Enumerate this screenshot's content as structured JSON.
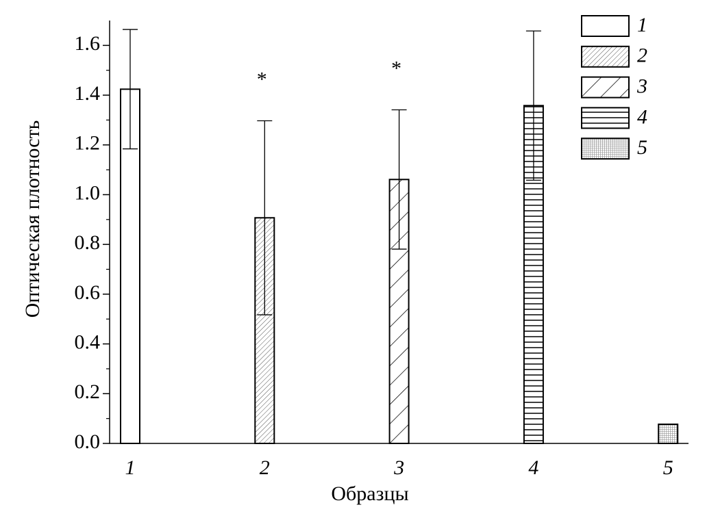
{
  "chart_data": {
    "type": "bar",
    "x_label": "Образцы",
    "y_label": "Оптическая плотность",
    "categories": [
      "1",
      "2",
      "3",
      "4",
      "5"
    ],
    "values": [
      1.424,
      0.907,
      1.061,
      1.358,
      0.077
    ],
    "errors": [
      0.24,
      0.39,
      0.28,
      0.3,
      null
    ],
    "patterns": [
      "none",
      "fine-diagonal",
      "diagonal",
      "horizontal",
      "grid"
    ],
    "color": "#000000",
    "annotations": [
      {
        "text": "*",
        "x": "2"
      },
      {
        "text": "*",
        "x": "3"
      }
    ],
    "ylim": [
      0,
      1.7
    ],
    "yticks": [
      {
        "value": 0,
        "label": "0.0"
      },
      0.2,
      0.4,
      0.6,
      0.8,
      {
        "value": 1,
        "label": "1.0"
      },
      1.2,
      1.4,
      1.6
    ],
    "legend": "top-right"
  }
}
